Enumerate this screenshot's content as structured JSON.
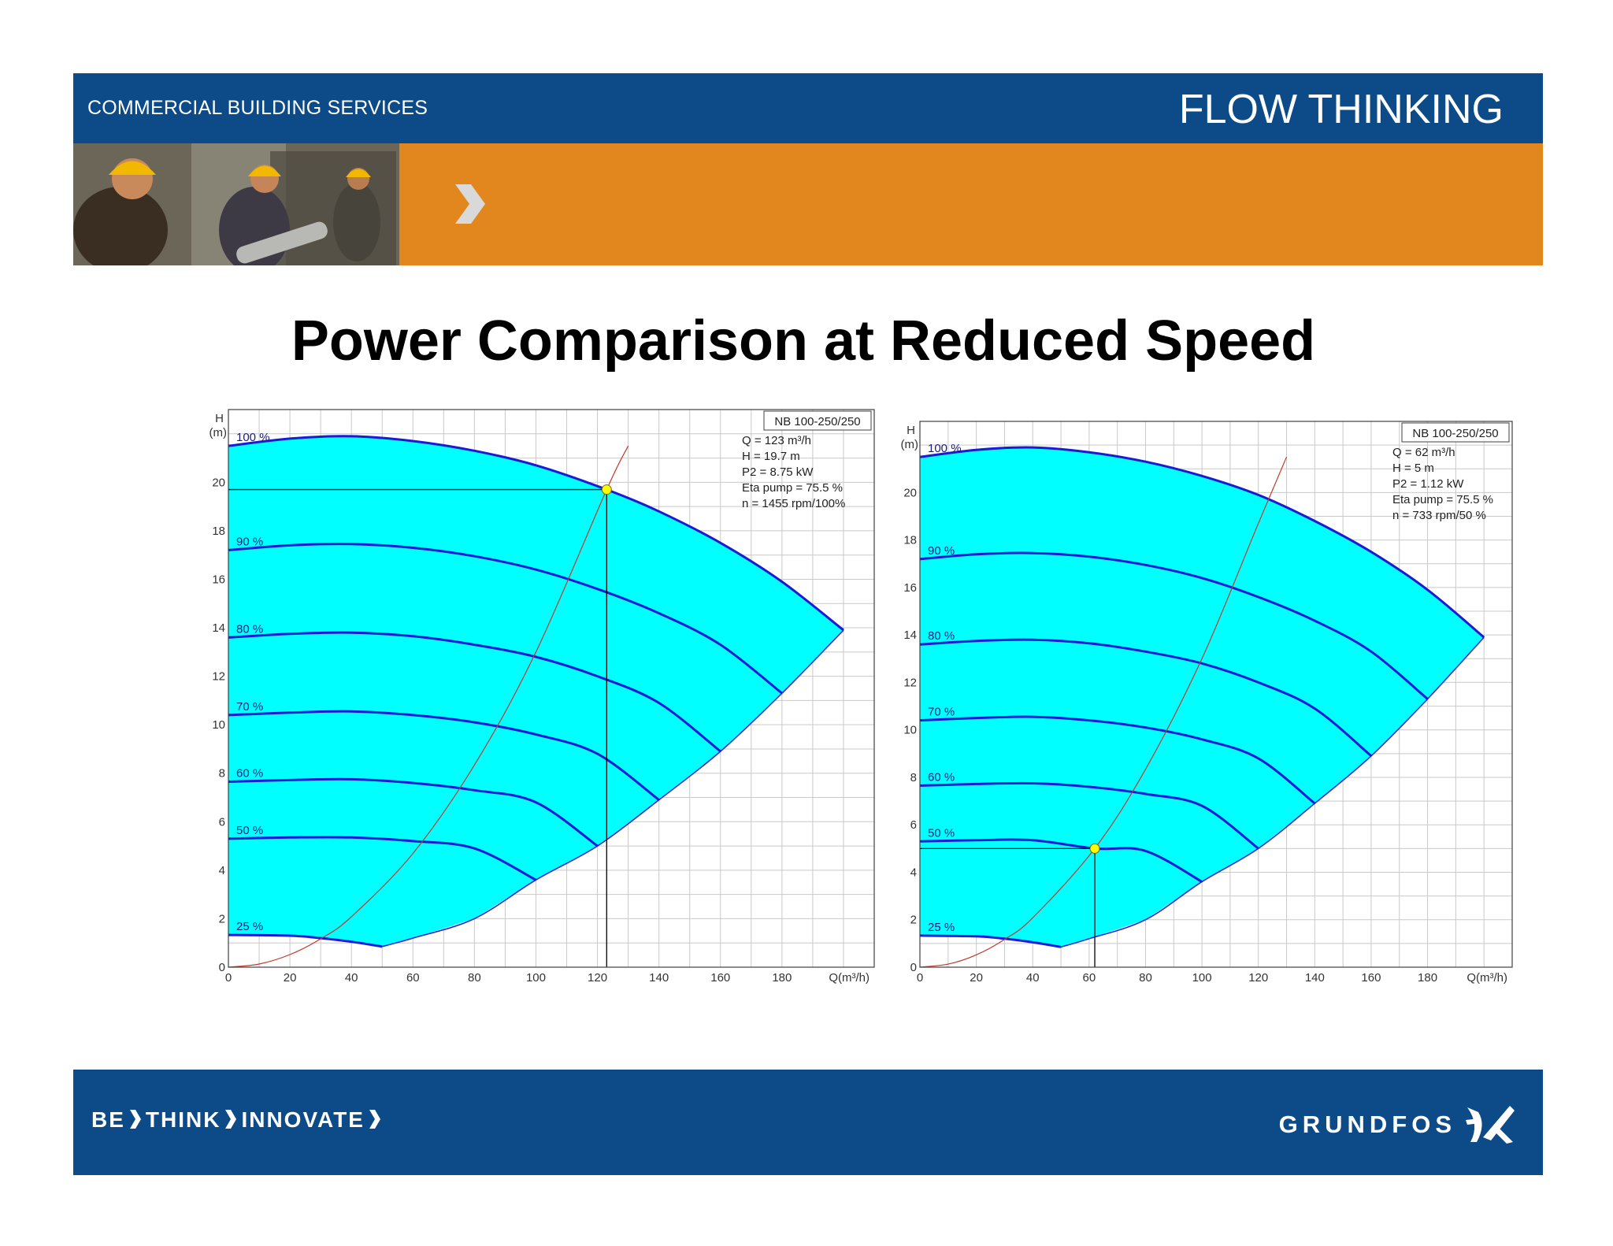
{
  "header": {
    "left_text": "COMMERCIAL BUILDING SERVICES",
    "right_text": "FLOW THINKING"
  },
  "title": "Power Comparison at Reduced Speed",
  "footer": {
    "tagline_parts": [
      "BE",
      "THINK",
      "INNOVATE"
    ],
    "brand": "GRUNDFOS"
  },
  "colors": {
    "header_blue": "#0c4a88",
    "accent_orange": "#e2861e",
    "fill_cyan": "#00ffff",
    "curve_blue": "#1a1ad8",
    "system_curve": "#c0392b",
    "operating_point": "#ffff00"
  },
  "chart_data": [
    {
      "type": "line",
      "ylabel": "H",
      "yunit": "(m)",
      "xlabel": "Q(m³/h)",
      "xlim": [
        0,
        210
      ],
      "ylim": [
        0,
        23
      ],
      "xticks": [
        0,
        20,
        40,
        60,
        80,
        100,
        120,
        140,
        160,
        180
      ],
      "yticks": [
        0,
        2,
        4,
        6,
        8,
        10,
        12,
        14,
        16,
        18,
        20
      ],
      "grid": true,
      "info": {
        "model": "NB 100-250/250",
        "lines": [
          "Q = 123 m³/h",
          "H = 19.7 m",
          "P2 = 8.75 kW",
          "Eta pump = 75.5 %",
          "n = 1455 rpm/100%"
        ]
      },
      "series": [
        {
          "name": "100 %",
          "x": [
            0,
            20,
            40,
            60,
            80,
            100,
            123,
            140,
            160,
            180,
            200
          ],
          "y": [
            21.5,
            21.8,
            21.9,
            21.7,
            21.3,
            20.7,
            19.7,
            18.8,
            17.5,
            15.9,
            13.9
          ]
        },
        {
          "name": "90 %",
          "x": [
            0,
            20,
            40,
            60,
            80,
            100,
            120,
            140,
            160,
            180
          ],
          "y": [
            17.2,
            17.4,
            17.45,
            17.3,
            16.95,
            16.4,
            15.6,
            14.6,
            13.3,
            11.3
          ]
        },
        {
          "name": "80 %",
          "x": [
            0,
            20,
            40,
            60,
            80,
            100,
            120,
            140,
            160
          ],
          "y": [
            13.6,
            13.75,
            13.8,
            13.65,
            13.3,
            12.8,
            12.0,
            10.9,
            8.9
          ]
        },
        {
          "name": "70 %",
          "x": [
            0,
            20,
            40,
            60,
            80,
            100,
            120,
            140
          ],
          "y": [
            10.4,
            10.5,
            10.55,
            10.4,
            10.1,
            9.6,
            8.8,
            6.9
          ]
        },
        {
          "name": "60 %",
          "x": [
            0,
            20,
            40,
            60,
            80,
            100,
            120
          ],
          "y": [
            7.65,
            7.72,
            7.75,
            7.6,
            7.3,
            6.8,
            5.0
          ]
        },
        {
          "name": "50 %",
          "x": [
            0,
            20,
            40,
            60,
            80,
            100
          ],
          "y": [
            5.3,
            5.35,
            5.35,
            5.2,
            4.9,
            3.6
          ]
        },
        {
          "name": "25 %",
          "x": [
            0,
            20,
            30,
            40,
            50
          ],
          "y": [
            1.33,
            1.3,
            1.2,
            1.05,
            0.85
          ]
        }
      ],
      "envelope_min_curve": {
        "x": [
          50,
          60,
          80,
          100,
          120,
          140,
          160,
          180,
          200
        ],
        "y": [
          0.85,
          1.2,
          2.0,
          3.6,
          5.0,
          6.9,
          8.9,
          11.3,
          13.9
        ]
      },
      "system_curve": {
        "x": [
          0,
          10,
          20,
          30,
          40,
          60,
          80,
          100,
          123,
          130
        ],
        "y": [
          0,
          0.13,
          0.52,
          1.17,
          2.08,
          4.69,
          8.34,
          13.0,
          19.7,
          21.5
        ]
      },
      "operating_point": {
        "x": 123,
        "y": 19.7
      }
    },
    {
      "type": "line",
      "ylabel": "H",
      "yunit": "(m)",
      "xlabel": "Q(m³/h)",
      "xlim": [
        0,
        210
      ],
      "ylim": [
        0,
        23
      ],
      "xticks": [
        0,
        20,
        40,
        60,
        80,
        100,
        120,
        140,
        160,
        180
      ],
      "yticks": [
        0,
        2,
        4,
        6,
        8,
        10,
        12,
        14,
        16,
        18,
        20
      ],
      "grid": true,
      "info": {
        "model": "NB 100-250/250",
        "lines": [
          "Q = 62 m³/h",
          "H = 5 m",
          "P2 = 1.12 kW",
          "Eta pump = 75.5 %",
          "n = 733  rpm/50 %"
        ]
      },
      "series": [
        {
          "name": "100 %",
          "x": [
            0,
            20,
            40,
            60,
            80,
            100,
            120,
            140,
            160,
            180,
            200
          ],
          "y": [
            21.5,
            21.8,
            21.9,
            21.7,
            21.3,
            20.7,
            19.9,
            18.8,
            17.5,
            15.9,
            13.9
          ]
        },
        {
          "name": "90 %",
          "x": [
            0,
            20,
            40,
            60,
            80,
            100,
            120,
            140,
            160,
            180
          ],
          "y": [
            17.2,
            17.4,
            17.45,
            17.3,
            16.95,
            16.4,
            15.6,
            14.6,
            13.3,
            11.3
          ]
        },
        {
          "name": "80 %",
          "x": [
            0,
            20,
            40,
            60,
            80,
            100,
            120,
            140,
            160
          ],
          "y": [
            13.6,
            13.75,
            13.8,
            13.65,
            13.3,
            12.8,
            12.0,
            10.9,
            8.9
          ]
        },
        {
          "name": "70 %",
          "x": [
            0,
            20,
            40,
            60,
            80,
            100,
            120,
            140
          ],
          "y": [
            10.4,
            10.5,
            10.55,
            10.4,
            10.1,
            9.6,
            8.8,
            6.9
          ]
        },
        {
          "name": "60 %",
          "x": [
            0,
            20,
            40,
            60,
            80,
            100,
            120
          ],
          "y": [
            7.65,
            7.72,
            7.75,
            7.6,
            7.3,
            6.8,
            5.0
          ]
        },
        {
          "name": "50 %",
          "x": [
            0,
            20,
            40,
            62,
            80,
            100
          ],
          "y": [
            5.3,
            5.35,
            5.35,
            5.0,
            4.9,
            3.6
          ]
        },
        {
          "name": "25 %",
          "x": [
            0,
            20,
            30,
            40,
            50
          ],
          "y": [
            1.33,
            1.3,
            1.2,
            1.05,
            0.85
          ]
        }
      ],
      "envelope_min_curve": {
        "x": [
          50,
          60,
          80,
          100,
          120,
          140,
          160,
          180,
          200
        ],
        "y": [
          0.85,
          1.2,
          2.0,
          3.6,
          5.0,
          6.9,
          8.9,
          11.3,
          13.9
        ]
      },
      "system_curve": {
        "x": [
          0,
          10,
          20,
          30,
          40,
          62,
          80,
          100,
          120,
          130
        ],
        "y": [
          0,
          0.13,
          0.52,
          1.17,
          2.08,
          5.0,
          8.34,
          13.0,
          18.7,
          21.5
        ]
      },
      "operating_point": {
        "x": 62,
        "y": 5.0
      }
    }
  ]
}
